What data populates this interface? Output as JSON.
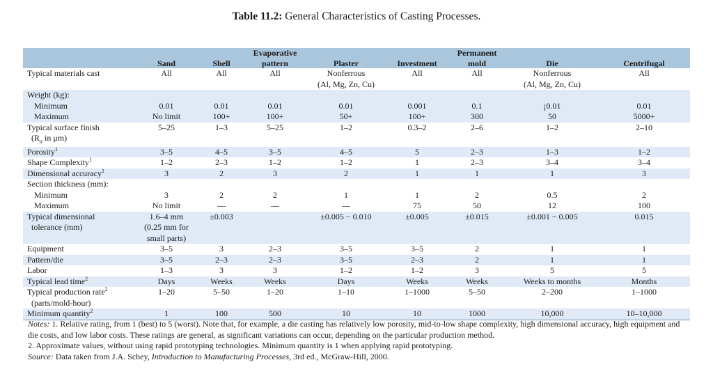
{
  "title": {
    "label": "Table 11.2:",
    "text": "General Characteristics of Casting Processes."
  },
  "columns": [
    "Sand",
    "Shell",
    "Evaporative pattern",
    "Plaster",
    "Investment",
    "Permanent mold",
    "Die",
    "Centrifugal"
  ],
  "header": {
    "sand": "Sand",
    "shell": "Shell",
    "evap_1": "Evaporative",
    "evap_2": "pattern",
    "plaster": "Plaster",
    "investment": "Investment",
    "perm_1": "Permanent",
    "perm_2": "mold",
    "die": "Die",
    "centrifugal": "Centrifugal"
  },
  "rows": {
    "materials": {
      "label": "Typical materials cast",
      "values": [
        "All",
        "All",
        "All",
        "Nonferrous",
        "All",
        "All",
        "Nonferrous",
        "All"
      ],
      "extra_plaster": "(Al, Mg, Zn, Cu)",
      "extra_die": "(Al, Mg, Zn, Cu)"
    },
    "weight": {
      "label": "Weight (kg):"
    },
    "weight_min": {
      "label": "Minimum",
      "values": [
        "0.01",
        "0.01",
        "0.01",
        "0.01",
        "0.001",
        "0.1",
        "¡0.01",
        "0.01"
      ]
    },
    "weight_max": {
      "label": "Maximum",
      "values": [
        "No limit",
        "100+",
        "100+",
        "50+",
        "100+",
        "300",
        "50",
        "5000+"
      ]
    },
    "finish": {
      "label": "Typical surface finish",
      "label_2": "(R",
      "label_sub": "a",
      "label_3": " in μm)",
      "values": [
        "5–25",
        "1–3",
        "5–25",
        "1–2",
        "0.3–2",
        "2–6",
        "1–2",
        "2–10"
      ]
    },
    "porosity": {
      "label": "Porosity",
      "sup": "1",
      "values": [
        "3–5",
        "4–5",
        "3–5",
        "4–5",
        "5",
        "2–3",
        "1–3",
        "1–2"
      ]
    },
    "shape": {
      "label": "Shape Complexity",
      "sup": "1",
      "values": [
        "1–2",
        "2–3",
        "1–2",
        "1–2",
        "1",
        "2–3",
        "3–4",
        "3–4"
      ]
    },
    "accuracy": {
      "label": "Dimensional accuracy",
      "sup": "1",
      "values": [
        "3",
        "2",
        "3",
        "2",
        "1",
        "1",
        "1",
        "3"
      ]
    },
    "section": {
      "label": "Section thickness (mm):"
    },
    "section_min": {
      "label": "Minimum",
      "values": [
        "3",
        "2",
        "2",
        "1",
        "1",
        "2",
        "0.5",
        "2"
      ]
    },
    "section_max": {
      "label": "Maximum",
      "values": [
        "No limit",
        "—",
        "—",
        "—",
        "75",
        "50",
        "12",
        "100"
      ]
    },
    "tolerance": {
      "label": "Typical dimensional",
      "label_2": "tolerance (mm)",
      "values": [
        "1.6–4 mm",
        "±0.003",
        "",
        "±0.005 − 0.010",
        "±0.005",
        "±0.015",
        "±0.001 − 0.005",
        "0.015"
      ],
      "sand_2": "(0.25 mm for",
      "sand_3": "small parts)"
    },
    "equipment": {
      "label": "Equipment",
      "values": [
        "3–5",
        "3",
        "2–3",
        "3–5",
        "3–5",
        "2",
        "1",
        "1"
      ]
    },
    "pattern": {
      "label": "Pattern/die",
      "values": [
        "3–5",
        "2–3",
        "2–3",
        "3–5",
        "2–3",
        "2",
        "1",
        "1"
      ]
    },
    "labor": {
      "label": "Labor",
      "values": [
        "1–3",
        "3",
        "3",
        "1–2",
        "1–2",
        "3",
        "5",
        "5"
      ]
    },
    "lead": {
      "label": "Typical lead time",
      "sup": "2",
      "values": [
        "Days",
        "Weeks",
        "Weeks",
        "Days",
        "Weeks",
        "Weeks",
        "Weeks to months",
        "Months"
      ]
    },
    "rate": {
      "label": "Typical production rate",
      "sup": "2",
      "label_2": "(parts/mold-hour)",
      "values": [
        "1–20",
        "5–50",
        "1–20",
        "1–10",
        "1–1000",
        "5–50",
        "2–200",
        "1–1000"
      ]
    },
    "minqty": {
      "label": "Minimum quantity",
      "sup": "2",
      "values": [
        "1",
        "100",
        "500",
        "10",
        "10",
        "1000",
        "10,000",
        "10–10,000"
      ]
    }
  },
  "notes": {
    "notes_label": "Notes:",
    "note1": " 1. Relative rating, from 1 (best) to 5 (worst). Note that, for example, a die casting has relatively low porosity, mid-to-low shape complexity, high dimensional accuracy, high equipment and die costs, and low labor costs. These ratings are general, as significant variations can occur, depending on the particular production method.",
    "note2": "2. Approximate values, without using rapid prototyping technologies. Minimum quantity is 1 when applying rapid prototyping.",
    "source_label": "Source:",
    "source_text": " Data taken from J.A. Schey, ",
    "source_book": "Introduction to Manufacturing Processes",
    "source_tail": ", 3rd ed., McGraw-Hill, 2000."
  }
}
